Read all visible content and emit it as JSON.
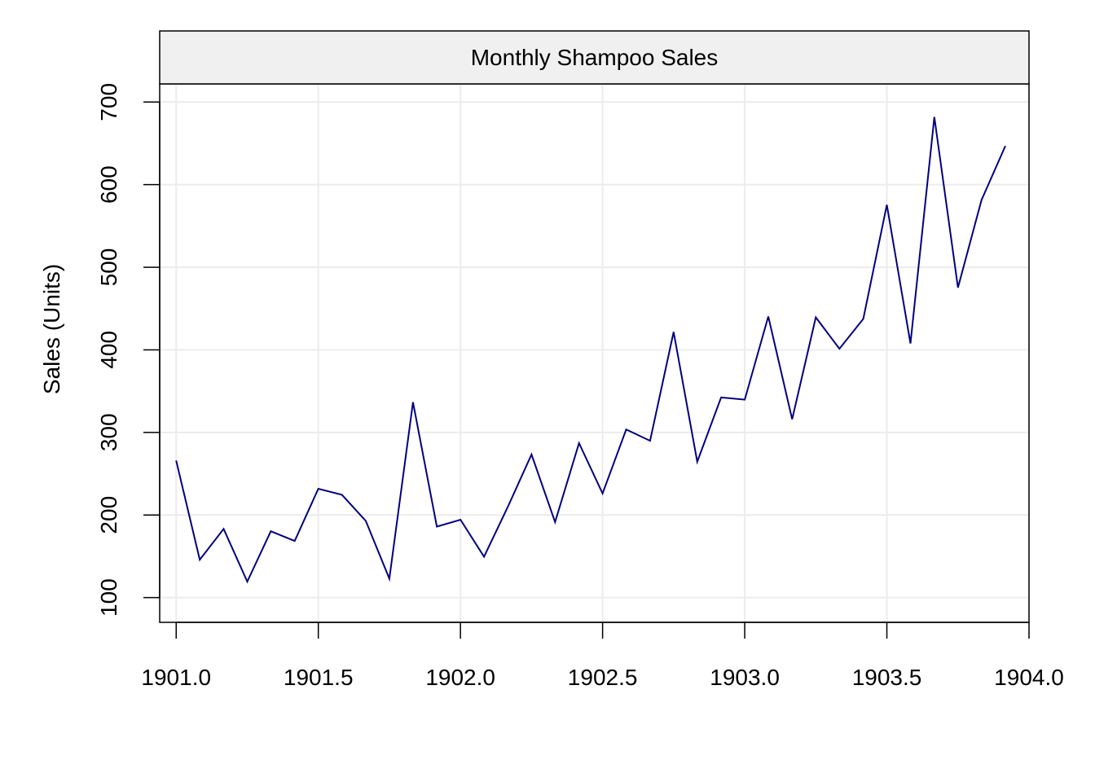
{
  "chart_data": {
    "type": "line",
    "title": "Monthly Shampoo Sales",
    "xlabel": "",
    "ylabel": "Sales (Units)",
    "xlim": [
      1900.942,
      1904.0
    ],
    "ylim": [
      70,
      722
    ],
    "x_ticks": [
      1901.0,
      1901.5,
      1902.0,
      1902.5,
      1903.0,
      1903.5,
      1904.0
    ],
    "x_tick_labels": [
      "1901.0",
      "1901.5",
      "1902.0",
      "1902.5",
      "1903.0",
      "1903.5",
      "1904.0"
    ],
    "y_ticks": [
      100,
      200,
      300,
      400,
      500,
      600,
      700
    ],
    "y_tick_labels": [
      "100",
      "200",
      "300",
      "400",
      "500",
      "600",
      "700"
    ],
    "grid": true,
    "series": [
      {
        "x": [
          1901.0,
          1901.083,
          1901.167,
          1901.25,
          1901.333,
          1901.417,
          1901.5,
          1901.583,
          1901.667,
          1901.75,
          1901.833,
          1901.917,
          1902.0,
          1902.083,
          1902.167,
          1902.25,
          1902.333,
          1902.417,
          1902.5,
          1902.583,
          1902.667,
          1902.75,
          1902.833,
          1902.917,
          1903.0,
          1903.083,
          1903.167,
          1903.25,
          1903.333,
          1903.417,
          1903.5,
          1903.583,
          1903.667,
          1903.75,
          1903.833,
          1903.917
        ],
        "values": [
          266.0,
          145.9,
          183.1,
          119.3,
          180.3,
          168.5,
          231.8,
          224.5,
          192.8,
          122.9,
          336.5,
          185.9,
          194.3,
          149.5,
          210.1,
          273.3,
          191.4,
          287.0,
          226.0,
          303.6,
          289.9,
          421.6,
          264.5,
          342.3,
          339.7,
          440.4,
          315.9,
          439.3,
          401.3,
          437.4,
          575.5,
          407.6,
          682.0,
          475.3,
          581.3,
          646.9
        ],
        "color": "#000080"
      }
    ]
  },
  "style": {
    "line_color": "#000080",
    "strip_background": "#f0f0f0",
    "grid_color": "#ececec"
  }
}
